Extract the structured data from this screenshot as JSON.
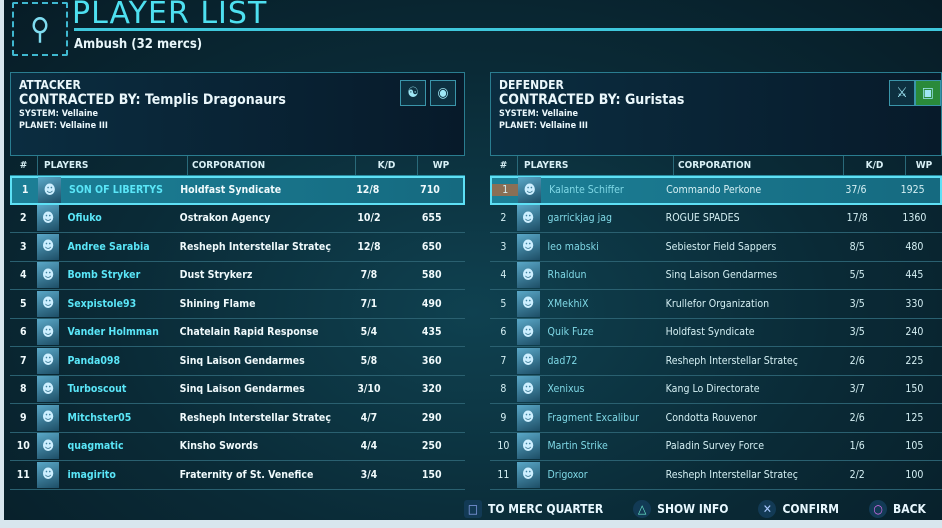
{
  "header": {
    "title": "PLAYER LIST",
    "subtitle": "Ambush (32 mercs)"
  },
  "columns": {
    "num": "#",
    "players": "PLAYERS",
    "corporation": "CORPORATION",
    "kd": "K/D",
    "wp": "WP"
  },
  "attacker": {
    "side": "ATTACKER",
    "contracted": "CONTRACTED  BY: Templis  Dragonaurs",
    "system": "SYSTEM: Vellaine",
    "planet": "PLANET: Vellaine  III",
    "rows": [
      [
        "1",
        "SON OF LIBERTYS",
        "Holdfast Syndicate",
        "12/8",
        "710"
      ],
      [
        "2",
        "Ofiuko",
        "Ostrakon Agency",
        "10/2",
        "655"
      ],
      [
        "3",
        "Andree Sarabia",
        "Resheph Interstellar Strateç",
        "12/8",
        "650"
      ],
      [
        "4",
        "Bomb Stryker",
        "Dust Strykerz",
        "7/8",
        "580"
      ],
      [
        "5",
        "Sexpistole93",
        "Shining Flame",
        "7/1",
        "490"
      ],
      [
        "6",
        "Vander Holmman",
        "Chatelain Rapid Response",
        "5/4",
        "435"
      ],
      [
        "7",
        "Panda098",
        "Sinq Laison Gendarmes",
        "5/8",
        "360"
      ],
      [
        "8",
        "Turboscout",
        "Sinq Laison Gendarmes",
        "3/10",
        "320"
      ],
      [
        "9",
        "Mitchster05",
        "Resheph Interstellar Strateç",
        "4/7",
        "290"
      ],
      [
        "10",
        "quagmatic",
        "Kinsho Swords",
        "4/4",
        "250"
      ],
      [
        "11",
        "imagirito",
        "Fraternity of St. Venefice",
        "3/4",
        "150"
      ]
    ]
  },
  "defender": {
    "side": "DEFENDER",
    "contracted": "CONTRACTED  BY: Guristas",
    "system": "SYSTEM: Vellaine",
    "planet": "PLANET: Vellaine  III",
    "rows": [
      [
        "1",
        "Kalante Schiffer",
        "Commando Perkone",
        "37/6",
        "1925"
      ],
      [
        "2",
        "garrickjag jag",
        "ROGUE SPADES",
        "17/8",
        "1360"
      ],
      [
        "3",
        "leo mabski",
        "Sebiestor Field Sappers",
        "8/5",
        "480"
      ],
      [
        "4",
        "Rhaldun",
        "Sinq Laison Gendarmes",
        "5/5",
        "445"
      ],
      [
        "5",
        "XMekhiX",
        "Krullefor Organization",
        "3/5",
        "330"
      ],
      [
        "6",
        "Quik Fuze",
        "Holdfast Syndicate",
        "3/5",
        "240"
      ],
      [
        "7",
        "dad72",
        "Resheph Interstellar Strateç",
        "2/6",
        "225"
      ],
      [
        "8",
        "Xenixus",
        "Kang Lo Directorate",
        "3/7",
        "150"
      ],
      [
        "9",
        "Fragment Excalibur",
        "Condotta Rouvenor",
        "2/6",
        "125"
      ],
      [
        "10",
        "Martin Strike",
        "Paladin Survey Force",
        "1/6",
        "105"
      ],
      [
        "11",
        "Drigoxor",
        "Resheph Interstellar Strateç",
        "2/2",
        "100"
      ]
    ]
  },
  "footer": {
    "merc": "TO MERC QUARTER",
    "info": "SHOW INFO",
    "confirm": "CONFIRM",
    "back": "BACK"
  }
}
